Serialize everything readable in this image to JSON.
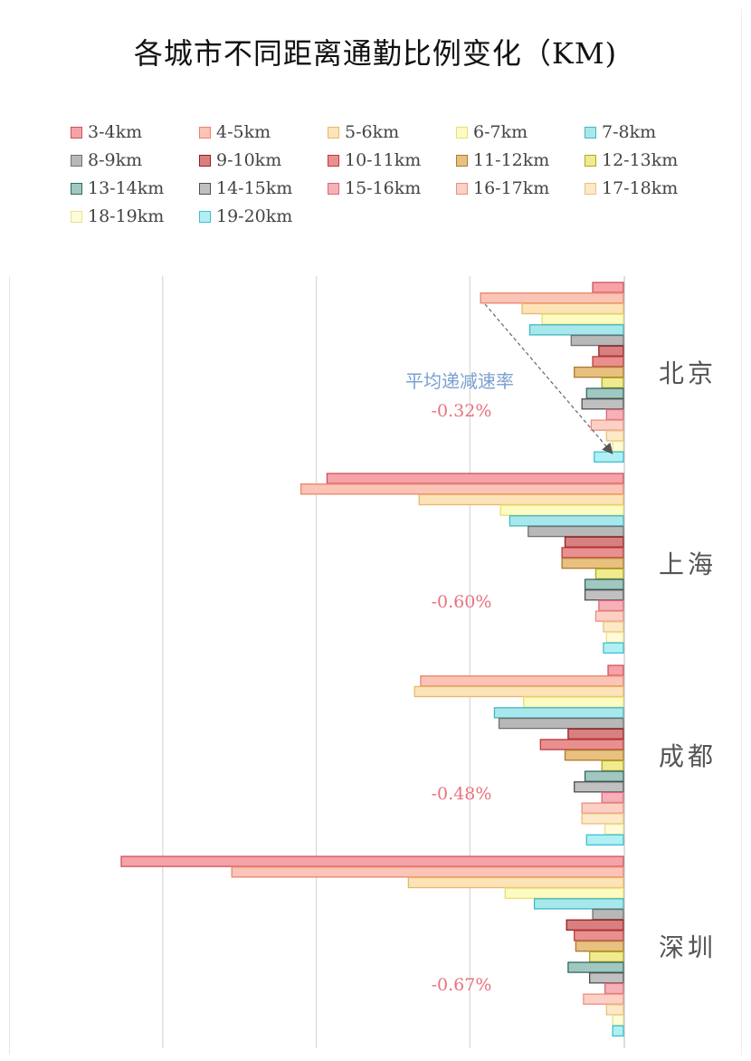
{
  "chart_data": {
    "type": "bar",
    "orientation": "horizontal",
    "title": "各城市不同距离通勤比例变化（KM)",
    "categories": [
      "北京",
      "上海",
      "成都",
      "深圳"
    ],
    "series": [
      {
        "name": "3-4km",
        "color": "#f5a3a8",
        "stroke": "#d0505a",
        "values": [
          -0.2,
          -1.93,
          -0.1,
          -3.27
        ]
      },
      {
        "name": "4-5km",
        "color": "#fbc4b6",
        "stroke": "#e8846e",
        "values": [
          -0.93,
          -2.1,
          -1.32,
          -2.55
        ]
      },
      {
        "name": "5-6km",
        "color": "#fde3b8",
        "stroke": "#e8b868",
        "values": [
          -0.66,
          -1.33,
          -1.36,
          -1.4
        ]
      },
      {
        "name": "6-7km",
        "color": "#fdfbc4",
        "stroke": "#e8e070",
        "values": [
          -0.53,
          -0.8,
          -0.65,
          -0.77
        ]
      },
      {
        "name": "7-8km",
        "color": "#a8e8ec",
        "stroke": "#40b8c0",
        "values": [
          -0.61,
          -0.74,
          -0.84,
          -0.58
        ]
      },
      {
        "name": "8-9km",
        "color": "#b8b8b8",
        "stroke": "#707070",
        "values": [
          -0.34,
          -0.62,
          -0.81,
          -0.2
        ]
      },
      {
        "name": "9-10km",
        "color": "#d88080",
        "stroke": "#902020",
        "values": [
          -0.16,
          -0.38,
          -0.36,
          -0.37
        ]
      },
      {
        "name": "10-11km",
        "color": "#e89090",
        "stroke": "#c03838",
        "values": [
          -0.2,
          -0.4,
          -0.54,
          -0.32
        ]
      },
      {
        "name": "11-12km",
        "color": "#e8c080",
        "stroke": "#b07830",
        "values": [
          -0.32,
          -0.4,
          -0.38,
          -0.31
        ]
      },
      {
        "name": "12-13km",
        "color": "#f0ea90",
        "stroke": "#b0a820",
        "values": [
          -0.14,
          -0.18,
          -0.14,
          -0.22
        ]
      },
      {
        "name": "13-14km",
        "color": "#a0c8c0",
        "stroke": "#306860",
        "values": [
          -0.24,
          -0.25,
          -0.25,
          -0.36
        ]
      },
      {
        "name": "14-15km",
        "color": "#c0c0c0",
        "stroke": "#505050",
        "values": [
          -0.27,
          -0.25,
          -0.32,
          -0.22
        ]
      },
      {
        "name": "15-16km",
        "color": "#f6b0b8",
        "stroke": "#d86878",
        "values": [
          -0.11,
          -0.16,
          -0.14,
          -0.12
        ]
      },
      {
        "name": "16-17km",
        "color": "#fcd0c4",
        "stroke": "#e89080",
        "values": [
          -0.21,
          -0.18,
          -0.27,
          -0.26
        ]
      },
      {
        "name": "17-18km",
        "color": "#fde8c8",
        "stroke": "#eac080",
        "values": [
          -0.11,
          -0.13,
          -0.27,
          -0.11
        ]
      },
      {
        "name": "18-19km",
        "color": "#fefcd8",
        "stroke": "#e8e090",
        "values": [
          -0.07,
          -0.11,
          -0.12,
          -0.07
        ]
      },
      {
        "name": "19-20km",
        "color": "#b0f0f4",
        "stroke": "#40c0d0",
        "values": [
          -0.19,
          -0.13,
          -0.24,
          -0.07
        ]
      }
    ],
    "avg_rates": [
      "-0.32%",
      "-0.60%",
      "-0.48%",
      "-0.67%"
    ],
    "annotation": "平均递减速率",
    "xlim": [
      -3.27,
      0
    ],
    "grid": true,
    "legend_position": "top"
  }
}
